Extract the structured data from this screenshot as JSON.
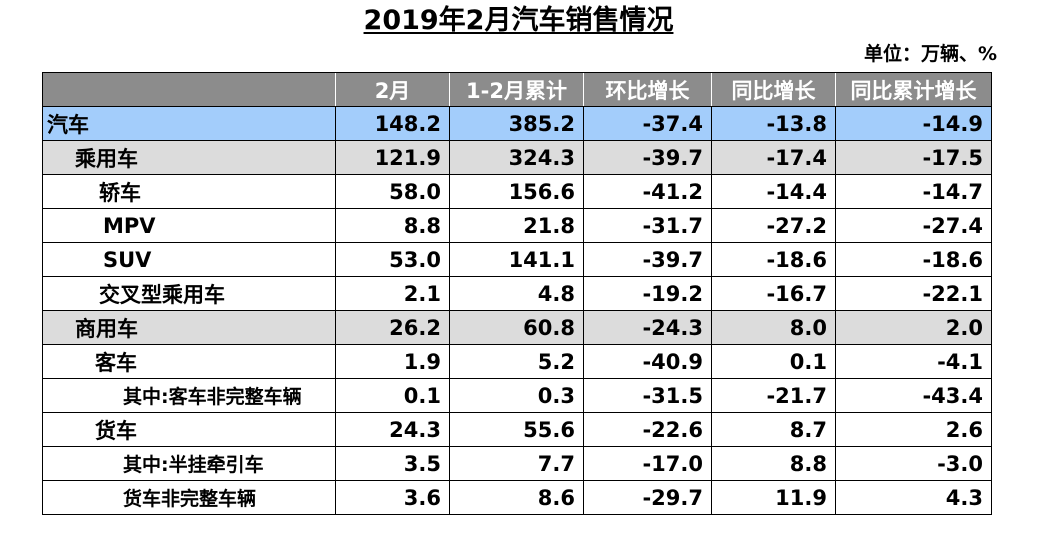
{
  "title": "2019年2月汽车销售情况",
  "unit": "单位：万辆、%",
  "table": {
    "headers": [
      "",
      "2月",
      "1-2月累计",
      "环比增长",
      "同比增长",
      "同比累计增长"
    ],
    "rows": [
      {
        "name": "汽车",
        "values": [
          "148.2",
          "385.2",
          "-37.4",
          "-13.8",
          "-14.9"
        ]
      },
      {
        "name": "乘用车",
        "values": [
          "121.9",
          "324.3",
          "-39.7",
          "-17.4",
          "-17.5"
        ]
      },
      {
        "name": "轿车",
        "values": [
          "58.0",
          "156.6",
          "-41.2",
          "-14.4",
          "-14.7"
        ]
      },
      {
        "name": "MPV",
        "values": [
          "8.8",
          "21.8",
          "-31.7",
          "-27.2",
          "-27.4"
        ]
      },
      {
        "name": "SUV",
        "values": [
          "53.0",
          "141.1",
          "-39.7",
          "-18.6",
          "-18.6"
        ]
      },
      {
        "name": "交叉型乘用车",
        "values": [
          "2.1",
          "4.8",
          "-19.2",
          "-16.7",
          "-22.1"
        ]
      },
      {
        "name": "商用车",
        "values": [
          "26.2",
          "60.8",
          "-24.3",
          "8.0",
          "2.0"
        ]
      },
      {
        "name": "客车",
        "values": [
          "1.9",
          "5.2",
          "-40.9",
          "0.1",
          "-4.1"
        ]
      },
      {
        "name": "其中:客车非完整车辆",
        "values": [
          "0.1",
          "0.3",
          "-31.5",
          "-21.7",
          "-43.4"
        ]
      },
      {
        "name": "货车",
        "values": [
          "24.3",
          "55.6",
          "-22.6",
          "8.7",
          "2.6"
        ]
      },
      {
        "name": "其中:半挂牵引车",
        "values": [
          "3.5",
          "7.7",
          "-17.0",
          "8.8",
          "-3.0"
        ]
      },
      {
        "name": "货车非完整车辆",
        "values": [
          "3.6",
          "8.6",
          "-29.7",
          "11.9",
          "4.3"
        ]
      }
    ]
  },
  "colors": {
    "header_bg": "#8c8c8c",
    "header_text": "#ffffff",
    "total_row_bg": "#a3cdfb",
    "category_row_bg": "#dcdcdc",
    "detail_row_bg": "#ffffff"
  }
}
